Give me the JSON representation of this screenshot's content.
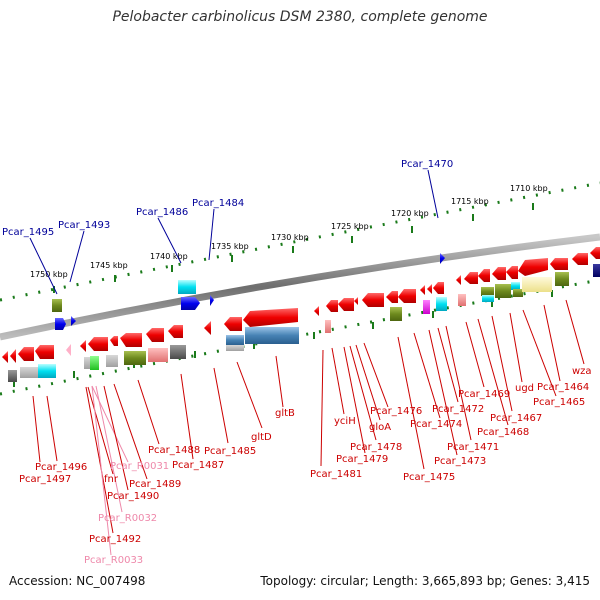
{
  "title": "Pelobacter carbinolicus DSM 2380, complete genome",
  "footer": {
    "accession": "Accession: NC_007498",
    "topology": "Topology: circular; Length: 3,665,893 bp; Genes: 3,415"
  },
  "colors": {
    "backbone": "#8a8a8a",
    "ticks": "#1a7a1a",
    "gene_label": "#cc0000",
    "rna_label": "#ee88aa",
    "highlight_label": "#000099",
    "forward_arrow": "#0000ee",
    "reverse_arrow": "#ee0000"
  },
  "scale_labels": [
    "1750 kbp",
    "1745 kbp",
    "1740 kbp",
    "1735 kbp",
    "1730 kbp",
    "1725 kbp",
    "1720 kbp",
    "1715 kbp",
    "1710 kbp"
  ],
  "top_labels": [
    "Pcar_1495",
    "Pcar_1493",
    "Pcar_1486",
    "Pcar_1484",
    "Pcar_1470"
  ],
  "bottom_labels": [
    "Pcar_1496",
    "Pcar_1497",
    "fnr",
    "Pcar_R0031",
    "Pcar_1490",
    "Pcar_1489",
    "Pcar_R0032",
    "Pcar_1492",
    "Pcar_R0033",
    "Pcar_1488",
    "Pcar_1487",
    "Pcar_1485",
    "gltD",
    "gltB",
    "Pcar_1481",
    "yciH",
    "Pcar_1479",
    "Pcar_1478",
    "gloA",
    "Pcar_1476",
    "Pcar_1475",
    "Pcar_1474",
    "Pcar_1473",
    "Pcar_1472",
    "Pcar_1471",
    "Pcar_1469",
    "Pcar_1468",
    "Pcar_1467",
    "ugd",
    "Pcar_1465",
    "Pcar_1464",
    "wza"
  ]
}
